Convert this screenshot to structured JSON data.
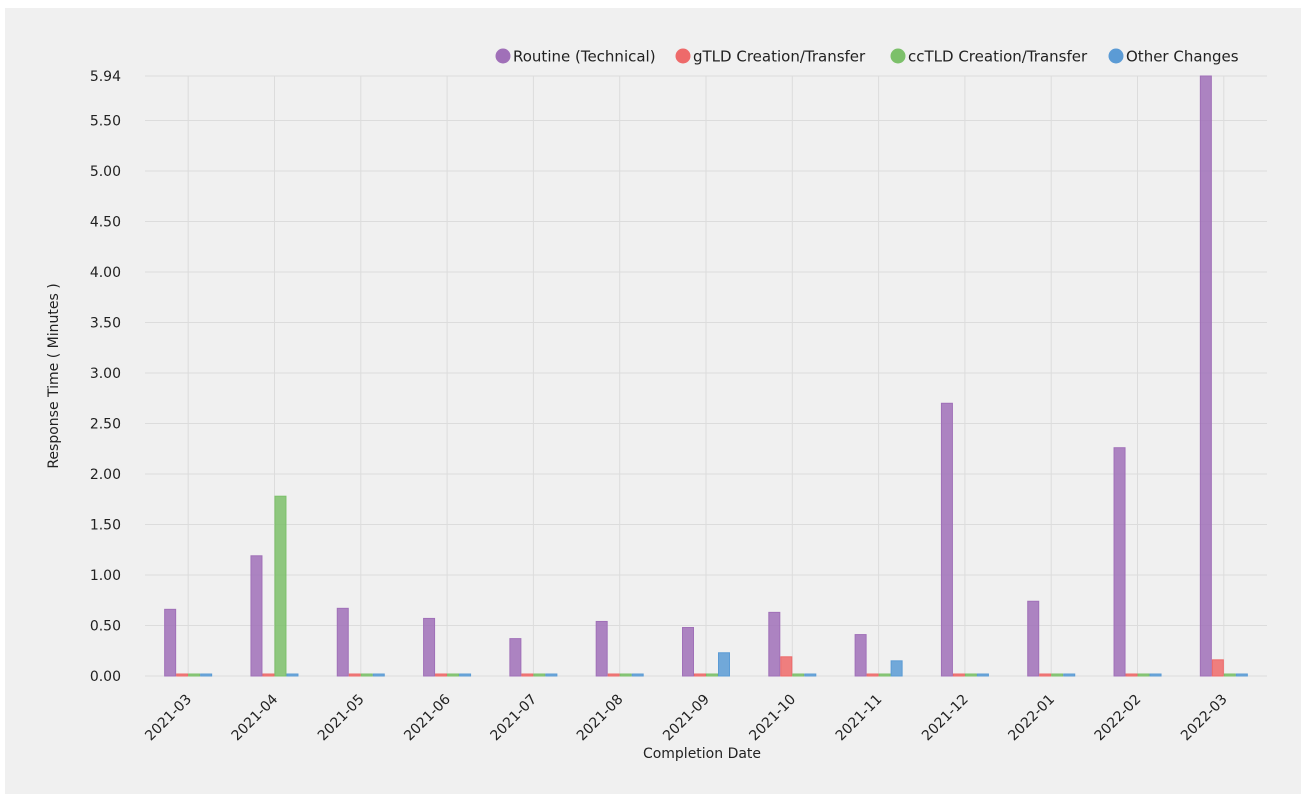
{
  "chart_data": {
    "type": "bar",
    "title": "",
    "xlabel": "Completion Date",
    "ylabel": "Response Time ( Minutes )",
    "ylim": [
      0,
      5.94
    ],
    "yticks": [
      "0.00",
      "0.50",
      "1.00",
      "1.50",
      "2.00",
      "2.50",
      "3.00",
      "3.50",
      "4.00",
      "4.50",
      "5.00",
      "5.50",
      "5.94"
    ],
    "categories": [
      "2021-03",
      "2021-04",
      "2021-05",
      "2021-06",
      "2021-07",
      "2021-08",
      "2021-09",
      "2021-10",
      "2021-11",
      "2021-12",
      "2022-01",
      "2022-02",
      "2022-03"
    ],
    "legend_position": "top-right",
    "grid": true,
    "series": [
      {
        "name": "Routine (Technical)",
        "color": "#a070b8",
        "values": [
          0.66,
          1.19,
          0.67,
          0.57,
          0.37,
          0.54,
          0.48,
          0.63,
          0.41,
          2.7,
          0.74,
          2.26,
          5.94
        ]
      },
      {
        "name": "gTLD Creation/Transfer",
        "color": "#ee6a6a",
        "values": [
          0.01,
          0.01,
          0.01,
          0.01,
          0.01,
          0.01,
          0.01,
          0.19,
          0.01,
          0.01,
          0.01,
          0.01,
          0.16
        ]
      },
      {
        "name": "ccTLD Creation/Transfer",
        "color": "#7cc06a",
        "values": [
          0.01,
          1.78,
          0.01,
          0.01,
          0.01,
          0.01,
          0.01,
          0.01,
          0.01,
          0.01,
          0.01,
          0.01,
          0.01
        ]
      },
      {
        "name": "Other Changes",
        "color": "#5b9bd5",
        "values": [
          0.01,
          0.01,
          0.01,
          0.01,
          0.01,
          0.01,
          0.23,
          0.01,
          0.15,
          0.01,
          0.01,
          0.01,
          0.01
        ]
      }
    ]
  }
}
